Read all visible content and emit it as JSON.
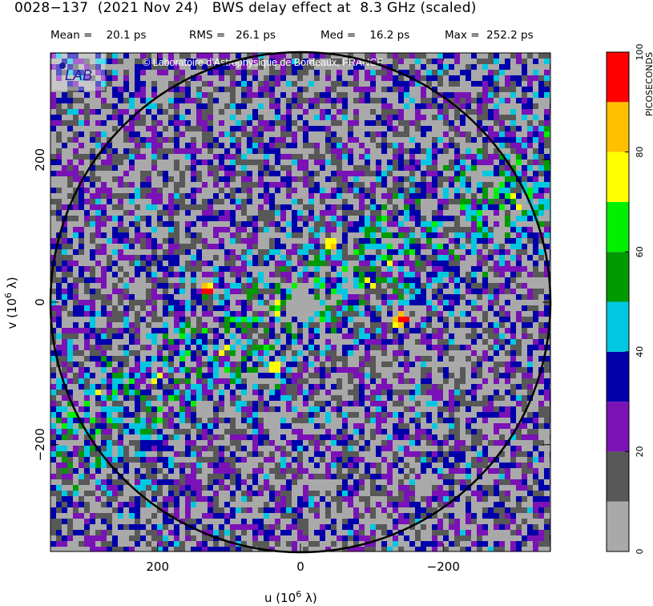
{
  "header": {
    "title": "0028−137  (2021 Nov 24)   BWS delay effect at  8.3 GHz (scaled)",
    "stats": [
      {
        "label": "Mean =",
        "value": "20.1 ps"
      },
      {
        "label": "RMS =",
        "value": "26.1 ps"
      },
      {
        "label": "Med =",
        "value": "16.2 ps"
      },
      {
        "label": "Max =",
        "value": "252.2 ps"
      }
    ]
  },
  "watermark": {
    "text": "Laboratoire d'Astrophysique de Bordeaux, FRANCE",
    "logo_text": "LAB"
  },
  "chart_data": {
    "type": "heatmap",
    "title": "BWS delay effect at 8.3 GHz (scaled)",
    "xlabel": "u  (10^6 λ)",
    "ylabel": "v  (10^6 λ)",
    "xlim": [
      350,
      -350
    ],
    "ylim": [
      -350,
      350
    ],
    "x_ticks": [
      200,
      0,
      -200
    ],
    "x_tick_labels": [
      "200",
      "0",
      "−200"
    ],
    "y_ticks": [
      200,
      0,
      -200
    ],
    "y_tick_labels": [
      "200",
      "0",
      "−200"
    ],
    "circle_radius": 350,
    "colorbar": {
      "label": "PICOSECONDS",
      "range": [
        0,
        100
      ],
      "tick_labels": [
        "0",
        "20",
        "40",
        "60",
        "80",
        "100"
      ],
      "bins": [
        {
          "from": 0,
          "to": 10,
          "color": "#a9a9a9"
        },
        {
          "from": 10,
          "to": 20,
          "color": "#585858"
        },
        {
          "from": 20,
          "to": 30,
          "color": "#7a12b6"
        },
        {
          "from": 30,
          "to": 40,
          "color": "#0000aa"
        },
        {
          "from": 40,
          "to": 50,
          "color": "#00c8e0"
        },
        {
          "from": 50,
          "to": 60,
          "color": "#009a00"
        },
        {
          "from": 60,
          "to": 70,
          "color": "#00f000"
        },
        {
          "from": 70,
          "to": 80,
          "color": "#ffff00"
        },
        {
          "from": 80,
          "to": 90,
          "color": "#ffc000"
        },
        {
          "from": 90,
          "to": 100,
          "color": "#ff0000"
        }
      ]
    },
    "hotspots": [
      {
        "u": 135,
        "v": 22,
        "value": 95
      },
      {
        "u": -135,
        "v": -22,
        "value": 95
      },
      {
        "u": 40,
        "v": -85,
        "value": 85
      },
      {
        "u": -40,
        "v": 85,
        "value": 85
      }
    ],
    "stripe_position_angle_deg": -28
  }
}
